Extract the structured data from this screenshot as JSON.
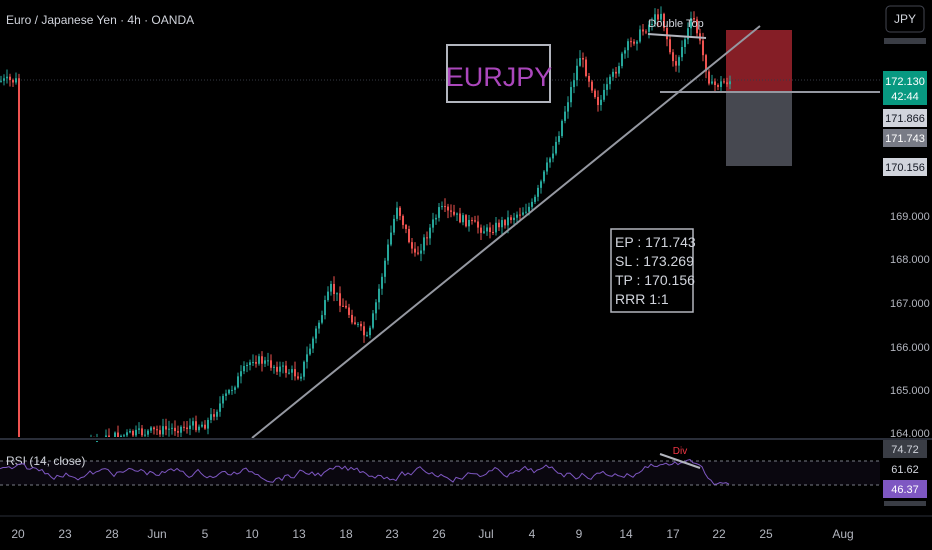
{
  "header": {
    "symbol_title": "Euro / Japanese Yen · 4h · OANDA",
    "currency_button": "JPY"
  },
  "annotations": {
    "symbol_box": "EURJPY",
    "double_top": "Double Top",
    "divergence": "Div",
    "trade_lines": [
      "EP : 171.743",
      "SL : 173.269",
      "TP : 170.156",
      "RRR 1:1"
    ]
  },
  "price_scale": {
    "ticks": [
      "169.000",
      "168.000",
      "167.000",
      "166.000",
      "165.000",
      "164.000"
    ],
    "badges": {
      "current_price": "172.130",
      "countdown": "42:44",
      "level_1": "171.866",
      "entry": "171.743",
      "target": "170.156"
    }
  },
  "rsi": {
    "label": "RSI (14, close)",
    "badges": [
      "74.72",
      "61.62",
      "46.37"
    ]
  },
  "time_axis": {
    "labels": [
      "20",
      "23",
      "28",
      "Jun",
      "5",
      "10",
      "13",
      "18",
      "23",
      "26",
      "Jul",
      "4",
      "9",
      "14",
      "17",
      "22",
      "25",
      "Aug"
    ]
  },
  "colors": {
    "up": "#26a69a",
    "down": "#ef5350",
    "rsi_line": "#7e57c2",
    "symbol_box_text": "#ab47bc",
    "current_price_badge": "#089981",
    "rsi_badge": "#7e57c2",
    "stop_zone": "#b22833",
    "target_zone": "#5d606b"
  },
  "chart_data": {
    "type": "candlestick",
    "title": "Euro / Japanese Yen · 4h · OANDA",
    "y_range": [
      163.9,
      173.9
    ],
    "x_labels": [
      "20",
      "23",
      "28",
      "Jun",
      "5",
      "10",
      "13",
      "18",
      "23",
      "26",
      "Jul",
      "4",
      "9",
      "14",
      "17",
      "22",
      "25",
      "Aug"
    ],
    "close_path": [
      {
        "x": "20",
        "y": 163.4
      },
      {
        "x": "28",
        "y": 164.0
      },
      {
        "x": "5",
        "y": 164.3
      },
      {
        "x": "10",
        "y": 165.8
      },
      {
        "x": "13",
        "y": 165.4
      },
      {
        "x": "18",
        "y": 167.4
      },
      {
        "x": "20",
        "y": 166.2
      },
      {
        "x": "23",
        "y": 169.3
      },
      {
        "x": "25",
        "y": 168.1
      },
      {
        "x": "26",
        "y": 169.2
      },
      {
        "x": "Jul",
        "y": 168.7
      },
      {
        "x": "4",
        "y": 169.3
      },
      {
        "x": "7",
        "y": 170.8
      },
      {
        "x": "9",
        "y": 172.7
      },
      {
        "x": "11",
        "y": 171.6
      },
      {
        "x": "14",
        "y": 172.9
      },
      {
        "x": "16",
        "y": 173.7
      },
      {
        "x": "17",
        "y": 172.4
      },
      {
        "x": "19",
        "y": 173.6
      },
      {
        "x": "21",
        "y": 172.0
      },
      {
        "x": "22",
        "y": 172.13
      }
    ],
    "levels": {
      "entry": 171.743,
      "stop_loss": 173.269,
      "take_profit": 170.156
    },
    "rsi_series": {
      "name": "RSI (14, close)",
      "levels": [
        74.72,
        61.62,
        46.37
      ]
    }
  }
}
